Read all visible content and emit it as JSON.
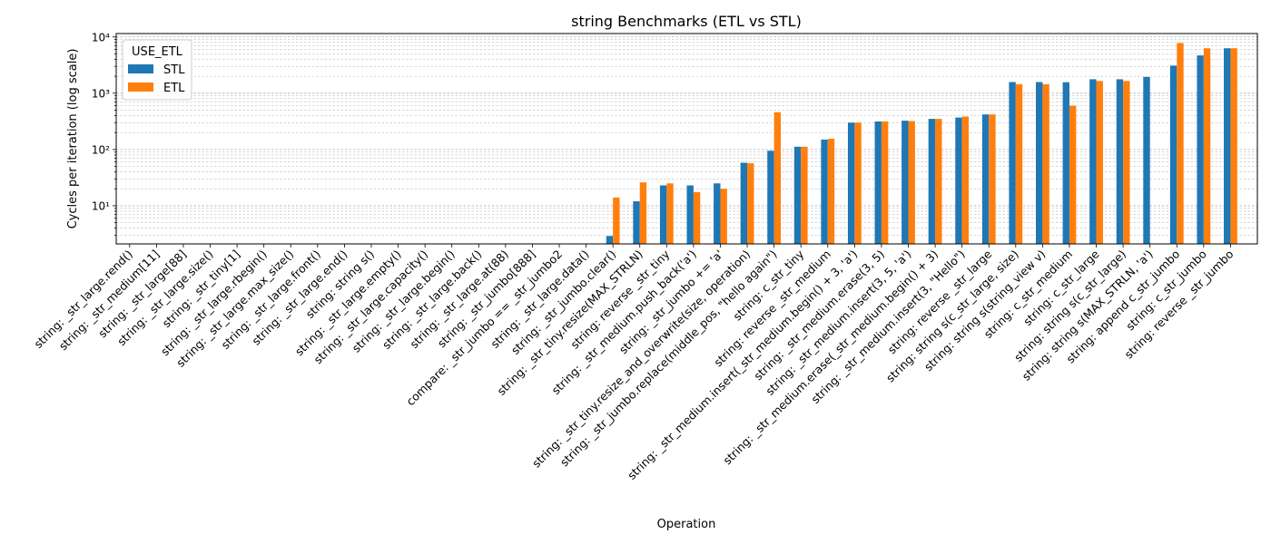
{
  "chart_data": {
    "type": "bar",
    "title": "string Benchmarks (ETL vs STL)",
    "xlabel": "Operation",
    "ylabel": "Cycles per iteration (log scale)",
    "yscale": "log",
    "ylim": [
      2.1,
      11500
    ],
    "ytick_labels": [
      "10¹",
      "10²",
      "10³",
      "10⁴"
    ],
    "ytick_values": [
      10,
      100,
      1000,
      10000
    ],
    "grid": "y, major and minor, dashed",
    "legend": {
      "title": "USE_ETL",
      "position": "top-left"
    },
    "categories": [
      "string: _str_large.rend()",
      "string: _str_medium[11]",
      "string: _str_large[88]",
      "string: _str_large.size()",
      "string: _str_tiny[1]",
      "string: _str_large.rbegin()",
      "string: _str_large.max_size()",
      "string: _str_large.front()",
      "string: _str_large.end()",
      "string: string s()",
      "string: _str_large.empty()",
      "string: _str_large.capacity()",
      "string: _str_large.begin()",
      "string: _str_large.back()",
      "string: _str_large.at(88)",
      "string: _str_jumbo[888]",
      "compare: _str_jumbo == _str_jumbo2",
      "string: _str_large.data()",
      "string: _str_jumbo.clear()",
      "string: _str_tiny.resize(MAX_STRLN)",
      "string: reverse _str_tiny",
      "string: _str_medium.push_back('a')",
      "string: _str_jumbo += 'a'",
      "string: _str_tiny.resize_and_overwrite(size, operation)",
      "string: _str_jumbo.replace(middle_pos, \"hello again\")",
      "string: c_str_tiny",
      "string: reverse _str_medium",
      "string: _str_medium.insert(_str_medium.begin() + 3, 'a')",
      "string: _str_medium.erase(3, 5)",
      "string: _str_medium.insert(3, 5, 'a')",
      "string: _str_medium.erase(_str_medium.begin() + 3)",
      "string: _str_medium.insert(3, \"Hello\")",
      "string: reverse _str_large",
      "string: string s(c_str_large, size)",
      "string: string s(string_view v)",
      "string: c_str_medium",
      "string: c_str_large",
      "string: string s(c_str_large)",
      "string: string s(MAX_STRLN, 'a')",
      "string: append c_str_jumbo",
      "string: c_str_jumbo",
      "string: reverse _str_jumbo"
    ],
    "series": [
      {
        "name": "STL",
        "color": "#1f77b4",
        "values": [
          null,
          null,
          null,
          null,
          null,
          null,
          null,
          null,
          null,
          null,
          null,
          null,
          null,
          null,
          null,
          null,
          null,
          null,
          2.9,
          12,
          23,
          23,
          25,
          58,
          95,
          112,
          150,
          300,
          315,
          325,
          350,
          370,
          420,
          1580,
          1580,
          1570,
          1770,
          1770,
          1950,
          3100,
          4700,
          6300
        ]
      },
      {
        "name": "ETL",
        "color": "#ff7f0e",
        "values": [
          null,
          null,
          null,
          null,
          null,
          null,
          null,
          null,
          null,
          null,
          null,
          null,
          null,
          null,
          null,
          null,
          null,
          null,
          14,
          26,
          25,
          17.5,
          20,
          57,
          460,
          112,
          155,
          300,
          315,
          320,
          350,
          385,
          420,
          1450,
          1450,
          600,
          1650,
          1650,
          null,
          7800,
          6300,
          6300
        ]
      }
    ]
  }
}
